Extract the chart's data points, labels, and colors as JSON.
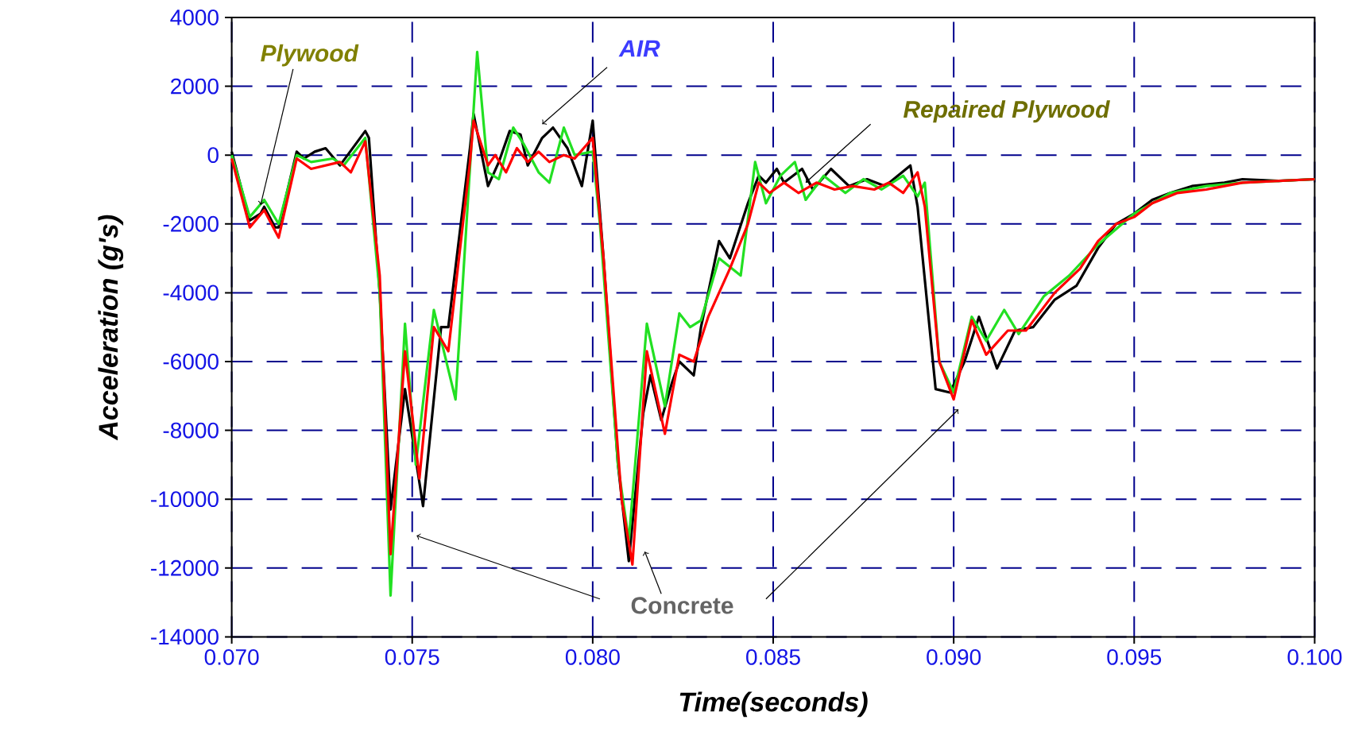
{
  "chart_data": {
    "type": "line",
    "xlabel": "Time(seconds)",
    "ylabel": "Acceleration (g's)",
    "xlim": [
      0.07,
      0.1
    ],
    "ylim": [
      -14000,
      4000
    ],
    "xticks": [
      {
        "value": 0.07,
        "label": "0.070"
      },
      {
        "value": 0.075,
        "label": "0.075"
      },
      {
        "value": 0.08,
        "label": "0.080"
      },
      {
        "value": 0.085,
        "label": "0.085"
      },
      {
        "value": 0.09,
        "label": "0.090"
      },
      {
        "value": 0.095,
        "label": "0.095"
      },
      {
        "value": 0.1,
        "label": "0.100"
      }
    ],
    "yticks": [
      -14000,
      -12000,
      -10000,
      -8000,
      -6000,
      -4000,
      -2000,
      0,
      2000,
      4000
    ],
    "grid": true,
    "line_style": "solid",
    "marker": "none",
    "annotations": [
      {
        "text": "Plywood",
        "x": 0.0708,
        "y": -1450
      },
      "AIR",
      "Repaired Plywood",
      "Concrete"
    ],
    "series": [
      {
        "color": "#000000",
        "x": [
          0.07,
          0.0705,
          0.0708,
          0.0709,
          0.0712,
          0.0713,
          0.0718,
          0.072,
          0.0723,
          0.0726,
          0.073,
          0.0737,
          0.0738,
          0.0741,
          0.0744,
          0.0748,
          0.0753,
          0.0758,
          0.076,
          0.0766,
          0.0767,
          0.0771,
          0.0774,
          0.0777,
          0.078,
          0.0782,
          0.0786,
          0.0789,
          0.0793,
          0.0797,
          0.08,
          0.0803,
          0.0807,
          0.081,
          0.0814,
          0.0816,
          0.0819,
          0.0822,
          0.0824,
          0.0828,
          0.083,
          0.0835,
          0.0838,
          0.0843,
          0.0846,
          0.0848,
          0.0851,
          0.0853,
          0.0858,
          0.0861,
          0.0866,
          0.0871,
          0.0876,
          0.0881,
          0.0888,
          0.089,
          0.0895,
          0.0899,
          0.0903,
          0.0907,
          0.0912,
          0.0917,
          0.0922,
          0.0928,
          0.0934,
          0.094,
          0.0945,
          0.095,
          0.0955,
          0.096,
          0.0966,
          0.0975,
          0.098,
          0.099,
          0.1
        ],
        "values": [
          100,
          -1900,
          -1700,
          -1500,
          -2100,
          -2100,
          100,
          -100,
          100,
          200,
          -300,
          700,
          500,
          -4000,
          -10300,
          -6800,
          -10200,
          -5000,
          -5000,
          200,
          1200,
          -900,
          -200,
          700,
          600,
          -300,
          500,
          800,
          200,
          -900,
          1000,
          -3000,
          -9000,
          -11800,
          -7500,
          -6400,
          -7700,
          -6600,
          -6000,
          -6400,
          -5000,
          -2500,
          -3000,
          -1400,
          -600,
          -800,
          -400,
          -800,
          -400,
          -1000,
          -400,
          -900,
          -700,
          -900,
          -300,
          -1500,
          -6800,
          -6900,
          -6000,
          -4700,
          -6200,
          -5100,
          -5000,
          -4200,
          -3800,
          -2700,
          -2000,
          -1700,
          -1300,
          -1100,
          -900,
          -800,
          -700,
          -750,
          -700
        ]
      },
      {
        "color": "#22e022",
        "x": [
          0.07,
          0.0705,
          0.0709,
          0.0713,
          0.0718,
          0.0722,
          0.0728,
          0.0731,
          0.0737,
          0.0741,
          0.0744,
          0.0748,
          0.0751,
          0.0756,
          0.0762,
          0.0768,
          0.0771,
          0.0774,
          0.0778,
          0.0781,
          0.0785,
          0.0788,
          0.0792,
          0.0795,
          0.08,
          0.0802,
          0.0807,
          0.081,
          0.0815,
          0.082,
          0.0824,
          0.0827,
          0.083,
          0.0835,
          0.0841,
          0.0845,
          0.0848,
          0.0852,
          0.0856,
          0.0859,
          0.0864,
          0.087,
          0.0875,
          0.088,
          0.0886,
          0.089,
          0.0892,
          0.0896,
          0.09,
          0.0905,
          0.0909,
          0.0914,
          0.0918,
          0.0925,
          0.0932,
          0.094,
          0.095,
          0.096,
          0.097,
          0.098,
          0.1
        ],
        "values": [
          0,
          -1800,
          -1300,
          -2000,
          0,
          -200,
          -100,
          -300,
          500,
          -4000,
          -12800,
          -4900,
          -9000,
          -4500,
          -7100,
          3000,
          -500,
          -700,
          800,
          300,
          -500,
          -800,
          800,
          0,
          100,
          -2000,
          -9000,
          -11200,
          -4900,
          -7300,
          -4600,
          -5000,
          -4800,
          -3000,
          -3500,
          -200,
          -1400,
          -600,
          -200,
          -1300,
          -600,
          -1100,
          -700,
          -1000,
          -600,
          -1200,
          -800,
          -6000,
          -6900,
          -4700,
          -5400,
          -4500,
          -5200,
          -4100,
          -3500,
          -2600,
          -1700,
          -1100,
          -900,
          -800,
          -700
        ]
      },
      {
        "color": "#ff0000",
        "x": [
          0.07,
          0.0705,
          0.0709,
          0.0713,
          0.0718,
          0.0722,
          0.073,
          0.0733,
          0.0737,
          0.0741,
          0.0744,
          0.0748,
          0.0752,
          0.0756,
          0.076,
          0.0766,
          0.0767,
          0.0771,
          0.0773,
          0.0776,
          0.0779,
          0.0782,
          0.0785,
          0.0788,
          0.0792,
          0.0795,
          0.08,
          0.0803,
          0.0808,
          0.0811,
          0.0815,
          0.082,
          0.0824,
          0.0828,
          0.0832,
          0.0838,
          0.0843,
          0.0846,
          0.0849,
          0.0853,
          0.0857,
          0.0862,
          0.0867,
          0.0872,
          0.0878,
          0.0882,
          0.0886,
          0.089,
          0.0892,
          0.0896,
          0.09,
          0.0905,
          0.0909,
          0.0915,
          0.092,
          0.0928,
          0.0935,
          0.094,
          0.0945,
          0.095,
          0.0955,
          0.0962,
          0.097,
          0.098,
          0.1
        ],
        "values": [
          -100,
          -2100,
          -1600,
          -2400,
          -100,
          -400,
          -200,
          -500,
          400,
          -3500,
          -11600,
          -5700,
          -9400,
          -5000,
          -5700,
          -200,
          1000,
          -300,
          0,
          -500,
          200,
          -200,
          100,
          -200,
          0,
          -100,
          500,
          -3000,
          -10000,
          -11900,
          -5700,
          -8100,
          -5800,
          -6000,
          -4700,
          -3300,
          -2000,
          -800,
          -1100,
          -800,
          -1100,
          -800,
          -1000,
          -900,
          -1000,
          -800,
          -1100,
          -500,
          -1500,
          -6000,
          -7100,
          -4800,
          -5800,
          -5100,
          -5100,
          -4000,
          -3300,
          -2500,
          -2000,
          -1800,
          -1400,
          -1100,
          -1000,
          -800,
          -700
        ]
      }
    ]
  }
}
